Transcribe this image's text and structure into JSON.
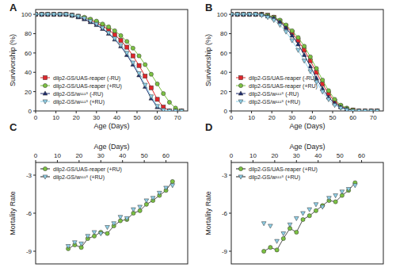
{
  "chart_data": [
    {
      "type": "line",
      "title": "A",
      "x_label": "Age (Days)",
      "y_label": "Survivorship (%)",
      "x": [
        0,
        3,
        6,
        9,
        12,
        15,
        18,
        21,
        24,
        27,
        30,
        33,
        36,
        39,
        42,
        45,
        48,
        51,
        54,
        57,
        60,
        63,
        66,
        69,
        72
      ],
      "xlim": [
        0,
        75
      ],
      "xticks": [
        0,
        10,
        20,
        30,
        40,
        50,
        60,
        70
      ],
      "ylim": [
        0,
        105
      ],
      "yticks": [
        0,
        20,
        40,
        60,
        80,
        100
      ],
      "legend": "lower left",
      "series": [
        {
          "name": "dilp2-GS/UAS-reaper (-RU)",
          "color": "#e0262b",
          "marker": "square",
          "values": [
            100,
            100,
            100,
            100,
            100,
            100,
            99,
            98,
            96,
            94,
            91,
            88,
            84,
            79,
            73,
            66,
            57,
            47,
            36,
            24,
            12,
            4,
            0,
            0,
            0
          ]
        },
        {
          "name": "dilp2-GS/UAS-reaper (+RU)",
          "color": "#7cc242",
          "marker": "circle",
          "values": [
            100,
            100,
            100,
            100,
            100,
            100,
            99,
            98,
            97,
            95,
            93,
            90,
            87,
            83,
            78,
            72,
            65,
            57,
            48,
            38,
            28,
            18,
            9,
            3,
            0
          ]
        },
        {
          "name": "dilp2-GS/w¹¹¹⁸ (-RU)",
          "color": "#1f2d6e",
          "marker": "triangle",
          "values": [
            100,
            100,
            100,
            100,
            100,
            100,
            99,
            97,
            95,
            92,
            89,
            85,
            80,
            74,
            67,
            58,
            48,
            37,
            25,
            13,
            4,
            0,
            0,
            0,
            0
          ]
        },
        {
          "name": "dilp2-GS/w¹¹¹⁸ (+RU)",
          "color": "#8fd0e8",
          "marker": "triangle-down",
          "values": [
            100,
            100,
            100,
            100,
            100,
            100,
            99,
            98,
            96,
            93,
            90,
            86,
            81,
            75,
            68,
            60,
            50,
            39,
            27,
            15,
            5,
            1,
            0,
            0,
            0
          ]
        }
      ]
    },
    {
      "type": "line",
      "title": "B",
      "x_label": "Age (Days)",
      "y_label": "Survivorship (%)",
      "x": [
        0,
        3,
        6,
        9,
        12,
        15,
        18,
        21,
        24,
        27,
        30,
        33,
        36,
        39,
        42,
        45,
        48,
        51,
        54,
        57,
        60,
        63,
        66,
        69,
        72
      ],
      "xlim": [
        0,
        75
      ],
      "xticks": [
        0,
        10,
        20,
        30,
        40,
        50,
        60,
        70
      ],
      "ylim": [
        0,
        105
      ],
      "yticks": [
        0,
        20,
        40,
        60,
        80,
        100
      ],
      "legend": "lower left",
      "series": [
        {
          "name": "dilp2-GS/UAS-reaper (-RU)",
          "color": "#e0262b",
          "marker": "square",
          "values": [
            100,
            100,
            100,
            100,
            100,
            100,
            99,
            97,
            93,
            88,
            81,
            73,
            63,
            52,
            40,
            28,
            18,
            10,
            5,
            2,
            1,
            0,
            0,
            0,
            0
          ]
        },
        {
          "name": "dilp2-GS/UAS-reaper (+RU)",
          "color": "#7cc242",
          "marker": "circle",
          "values": [
            100,
            100,
            100,
            100,
            100,
            100,
            99,
            97,
            94,
            89,
            83,
            76,
            67,
            56,
            44,
            32,
            21,
            12,
            6,
            3,
            1,
            0,
            0,
            0,
            0
          ]
        },
        {
          "name": "dilp2-GS/w¹¹¹⁸ (-RU)",
          "color": "#1f2d6e",
          "marker": "triangle",
          "values": [
            100,
            100,
            100,
            100,
            100,
            100,
            98,
            96,
            92,
            86,
            78,
            69,
            58,
            46,
            34,
            23,
            14,
            8,
            4,
            2,
            0,
            0,
            0,
            0,
            0
          ]
        },
        {
          "name": "dilp2-GS/w¹¹¹⁸ (+RU)",
          "color": "#8fd0e8",
          "marker": "triangle-down",
          "values": [
            100,
            100,
            100,
            100,
            100,
            99,
            97,
            94,
            89,
            82,
            73,
            63,
            52,
            41,
            30,
            20,
            12,
            6,
            3,
            1,
            0,
            0,
            0,
            0,
            0
          ]
        }
      ]
    },
    {
      "type": "scatter",
      "title": "C",
      "x_label": "Age (Days)",
      "y_label": "Mortality Rate",
      "x": [
        15,
        18,
        21,
        24,
        27,
        30,
        33,
        36,
        39,
        42,
        45,
        48,
        51,
        54,
        57,
        60,
        63
      ],
      "xlim": [
        0,
        70
      ],
      "xticks": [
        0,
        10,
        20,
        30,
        40,
        50,
        60
      ],
      "ylim": [
        -10,
        -2
      ],
      "yticks": [
        -9,
        -6,
        -3
      ],
      "legend": "upper left",
      "series": [
        {
          "name": "dilp2-GS/UAS-reaper (+RU)",
          "color": "#7cc242",
          "marker": "circle",
          "line_style": "solid",
          "values": [
            -8.8,
            -8.5,
            -8.7,
            -8,
            -7.8,
            -7.5,
            -7.6,
            -7,
            -6.6,
            -6.5,
            -6,
            -5.8,
            -5.3,
            -5,
            -4.6,
            -4.2,
            -3.5
          ]
        },
        {
          "name": "dilp2-GS/w¹¹¹⁸ (+RU)",
          "color": "#8fd0e8",
          "marker": "triangle-down",
          "values": [
            -8.6,
            -8.3,
            -8.4,
            -7.8,
            -7.5,
            -7.6,
            -7.1,
            -6.8,
            -6.3,
            -6.4,
            -5.7,
            -5.5,
            -5,
            -4.8,
            -4.4,
            -4,
            -3.8
          ]
        }
      ]
    },
    {
      "type": "scatter",
      "title": "D",
      "x_label": "Age (Days)",
      "y_label": "Mortality Rate",
      "x": [
        15,
        18,
        21,
        24,
        27,
        30,
        33,
        36,
        39,
        42,
        45,
        48,
        51,
        54,
        57
      ],
      "xlim": [
        0,
        70
      ],
      "xticks": [
        0,
        10,
        20,
        30,
        40,
        50,
        60
      ],
      "ylim": [
        -10,
        -2
      ],
      "yticks": [
        -9,
        -6,
        -3
      ],
      "legend": "upper left",
      "series": [
        {
          "name": "dilp2-GS/UAS-reaper (+RU)",
          "color": "#7cc242",
          "marker": "circle",
          "line_style": "solid",
          "values": [
            -9,
            -8.7,
            -8.9,
            -8,
            -7.2,
            -7.5,
            -6.5,
            -6.2,
            -5.8,
            -5.4,
            -5,
            -5.1,
            -4.6,
            -4.2,
            -3.6
          ]
        },
        {
          "name": "dilp2-GS/w¹¹¹⁸ (+RU)",
          "color": "#8fd0e8",
          "marker": "triangle-down",
          "values": [
            -6.8,
            -7,
            -8.2,
            -7.6,
            -6.9,
            -6.4,
            -6,
            -5.7,
            -5.3,
            -5.5,
            -4.8,
            -4.6,
            -4.3,
            -4.1,
            -3.8
          ]
        }
      ]
    }
  ]
}
